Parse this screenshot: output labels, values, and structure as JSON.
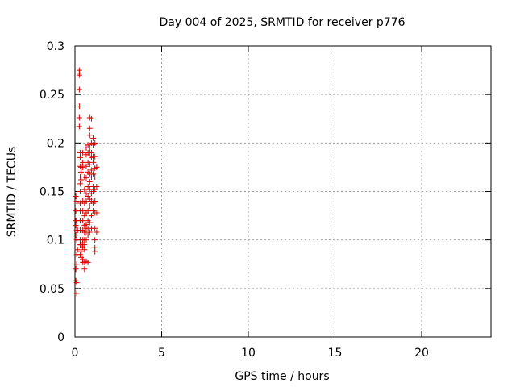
{
  "chart_data": {
    "type": "scatter",
    "title": "Day 004 of 2025, SRMTID for receiver p776",
    "xlabel": "GPS time / hours",
    "ylabel": "SRMTID / TECUs",
    "xlim": [
      0,
      24
    ],
    "ylim": [
      0,
      0.3
    ],
    "x_ticks": [
      0,
      5,
      10,
      15,
      20
    ],
    "x_tick_labels": [
      "0",
      "5",
      "10",
      "15",
      "20"
    ],
    "y_ticks": [
      0,
      0.05,
      0.1,
      0.15,
      0.2,
      0.25,
      0.3
    ],
    "y_tick_labels": [
      "0",
      "0.05",
      "0.1",
      "0.15",
      "0.2",
      "0.25",
      "0.3"
    ],
    "grid": true,
    "marker": "plus",
    "color": "#dd0000",
    "series": [
      {
        "points": [
          [
            0.05,
            0.145
          ],
          [
            0.05,
            0.13
          ],
          [
            0.05,
            0.12
          ],
          [
            0.05,
            0.115
          ],
          [
            0.05,
            0.105
          ],
          [
            0.05,
            0.07
          ],
          [
            0.05,
            0.058
          ],
          [
            0.1,
            0.14
          ],
          [
            0.1,
            0.12
          ],
          [
            0.1,
            0.11
          ],
          [
            0.1,
            0.1
          ],
          [
            0.1,
            0.085
          ],
          [
            0.1,
            0.075
          ],
          [
            0.1,
            0.056
          ],
          [
            0.1,
            0.045
          ],
          [
            0.15,
            0.11
          ],
          [
            0.15,
            0.09
          ],
          [
            0.25,
            0.275
          ],
          [
            0.25,
            0.272
          ],
          [
            0.25,
            0.27
          ],
          [
            0.25,
            0.255
          ],
          [
            0.25,
            0.238
          ],
          [
            0.25,
            0.226
          ],
          [
            0.25,
            0.217
          ],
          [
            0.3,
            0.19
          ],
          [
            0.3,
            0.185
          ],
          [
            0.3,
            0.176
          ],
          [
            0.3,
            0.165
          ],
          [
            0.3,
            0.158
          ],
          [
            0.3,
            0.15
          ],
          [
            0.3,
            0.138
          ],
          [
            0.3,
            0.13
          ],
          [
            0.3,
            0.12
          ],
          [
            0.3,
            0.11
          ],
          [
            0.3,
            0.1
          ],
          [
            0.3,
            0.095
          ],
          [
            0.3,
            0.085
          ],
          [
            0.35,
            0.175
          ],
          [
            0.35,
            0.17
          ],
          [
            0.35,
            0.162
          ],
          [
            0.35,
            0.095
          ],
          [
            0.35,
            0.088
          ],
          [
            0.35,
            0.082
          ],
          [
            0.45,
            0.19
          ],
          [
            0.45,
            0.18
          ],
          [
            0.45,
            0.175
          ],
          [
            0.45,
            0.14
          ],
          [
            0.45,
            0.13
          ],
          [
            0.45,
            0.12
          ],
          [
            0.45,
            0.11
          ],
          [
            0.45,
            0.1
          ],
          [
            0.45,
            0.097
          ],
          [
            0.45,
            0.093
          ],
          [
            0.45,
            0.08
          ],
          [
            0.45,
            0.077
          ],
          [
            0.55,
            0.165
          ],
          [
            0.55,
            0.152
          ],
          [
            0.55,
            0.138
          ],
          [
            0.55,
            0.125
          ],
          [
            0.55,
            0.115
          ],
          [
            0.55,
            0.108
          ],
          [
            0.55,
            0.1
          ],
          [
            0.55,
            0.095
          ],
          [
            0.55,
            0.09
          ],
          [
            0.55,
            0.077
          ],
          [
            0.55,
            0.07
          ],
          [
            0.65,
            0.195
          ],
          [
            0.65,
            0.188
          ],
          [
            0.65,
            0.176
          ],
          [
            0.65,
            0.164
          ],
          [
            0.65,
            0.148
          ],
          [
            0.65,
            0.14
          ],
          [
            0.65,
            0.128
          ],
          [
            0.65,
            0.116
          ],
          [
            0.65,
            0.112
          ],
          [
            0.65,
            0.108
          ],
          [
            0.65,
            0.1
          ],
          [
            0.65,
            0.078
          ],
          [
            0.75,
            0.198
          ],
          [
            0.75,
            0.19
          ],
          [
            0.75,
            0.18
          ],
          [
            0.75,
            0.17
          ],
          [
            0.75,
            0.155
          ],
          [
            0.75,
            0.145
          ],
          [
            0.75,
            0.13
          ],
          [
            0.75,
            0.12
          ],
          [
            0.75,
            0.112
          ],
          [
            0.75,
            0.105
          ],
          [
            0.75,
            0.077
          ],
          [
            0.85,
            0.226
          ],
          [
            0.85,
            0.215
          ],
          [
            0.85,
            0.208
          ],
          [
            0.85,
            0.195
          ],
          [
            0.85,
            0.19
          ],
          [
            0.85,
            0.178
          ],
          [
            0.85,
            0.168
          ],
          [
            0.85,
            0.16
          ],
          [
            0.85,
            0.152
          ],
          [
            0.85,
            0.142
          ],
          [
            0.85,
            0.135
          ],
          [
            0.85,
            0.118
          ],
          [
            0.85,
            0.108
          ],
          [
            0.95,
            0.225
          ],
          [
            0.95,
            0.2
          ],
          [
            0.95,
            0.19
          ],
          [
            0.95,
            0.185
          ],
          [
            0.95,
            0.172
          ],
          [
            0.95,
            0.165
          ],
          [
            0.95,
            0.148
          ],
          [
            0.95,
            0.14
          ],
          [
            0.95,
            0.125
          ],
          [
            0.95,
            0.112
          ],
          [
            1.05,
            0.205
          ],
          [
            1.05,
            0.198
          ],
          [
            1.05,
            0.186
          ],
          [
            1.05,
            0.18
          ],
          [
            1.05,
            0.168
          ],
          [
            1.05,
            0.155
          ],
          [
            1.05,
            0.15
          ],
          [
            1.05,
            0.138
          ],
          [
            1.05,
            0.13
          ],
          [
            1.15,
            0.2
          ],
          [
            1.15,
            0.186
          ],
          [
            1.15,
            0.174
          ],
          [
            1.15,
            0.165
          ],
          [
            1.15,
            0.152
          ],
          [
            1.15,
            0.14
          ],
          [
            1.15,
            0.128
          ],
          [
            1.15,
            0.112
          ],
          [
            1.15,
            0.1
          ],
          [
            1.15,
            0.092
          ],
          [
            1.15,
            0.088
          ],
          [
            1.25,
            0.175
          ],
          [
            1.25,
            0.155
          ],
          [
            1.25,
            0.128
          ],
          [
            1.25,
            0.108
          ]
        ]
      }
    ]
  }
}
